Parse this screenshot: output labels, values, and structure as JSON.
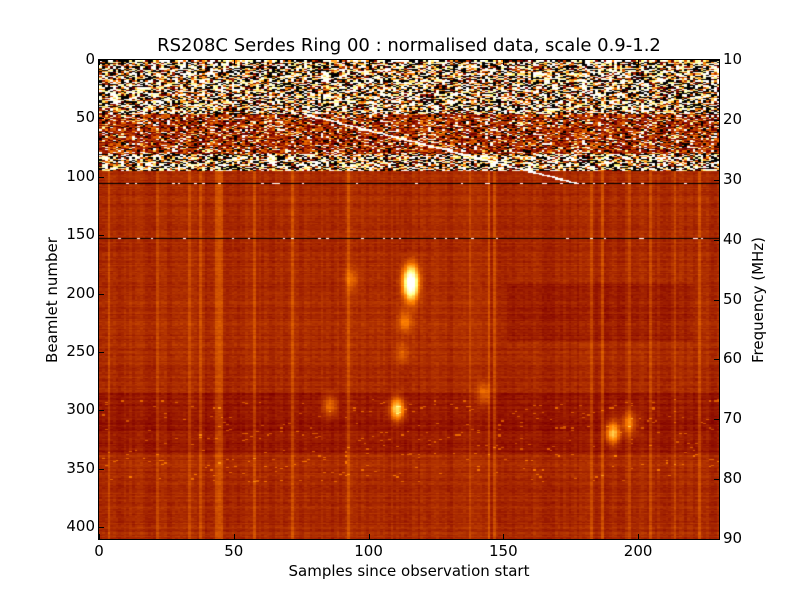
{
  "chart_data": {
    "type": "heatmap",
    "title": "RS208C Serdes Ring 00 : normalised data, scale 0.9-1.2",
    "xlabel": "Samples since observation start",
    "ylabel": "Beamlet number",
    "y2label": "Frequency (MHz)",
    "xlim": [
      0,
      230
    ],
    "ylim": [
      410,
      0
    ],
    "y2lim": [
      90,
      10
    ],
    "xticks": [
      0,
      50,
      100,
      150,
      200
    ],
    "yticks": [
      0,
      50,
      100,
      150,
      200,
      250,
      300,
      350,
      400
    ],
    "y2ticks": [
      10,
      20,
      30,
      40,
      50,
      60,
      70,
      80,
      90
    ],
    "color_scale": [
      0.9,
      1.2
    ],
    "colormap": "afmhot",
    "noisy_band_beamlets": [
      0,
      95
    ],
    "dropout_lines_beamlets": [
      105,
      152
    ],
    "diagonal_track": {
      "from": [
        75,
        45
      ],
      "to": [
        177,
        105
      ]
    },
    "bright_features": [
      {
        "x": 115,
        "y": 190,
        "level": 1.25
      },
      {
        "x": 113,
        "y": 223,
        "level": 1.05
      },
      {
        "x": 112,
        "y": 250,
        "level": 1.03
      },
      {
        "x": 110,
        "y": 298,
        "level": 1.12
      },
      {
        "x": 93,
        "y": 187,
        "level": 1.03
      },
      {
        "x": 190,
        "y": 318,
        "level": 1.1
      },
      {
        "x": 196,
        "y": 310,
        "level": 1.06
      },
      {
        "x": 142,
        "y": 285,
        "level": 1.04
      },
      {
        "x": 85,
        "y": 295,
        "level": 1.05
      }
    ]
  }
}
